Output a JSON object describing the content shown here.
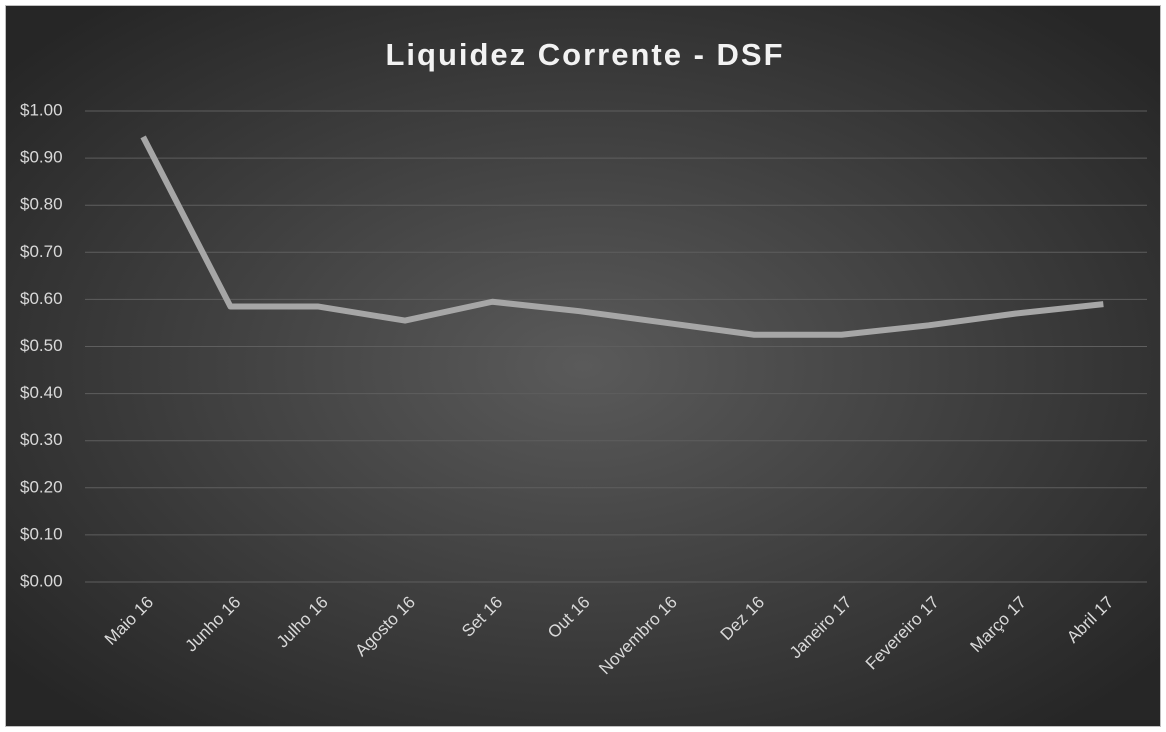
{
  "chart_data": {
    "type": "line",
    "title": "Liquidez Corrente -  DSF",
    "categories": [
      "Maio 16",
      "Junho 16",
      "Julho 16",
      "Agosto 16",
      "Set 16",
      "Out 16",
      "Novembro 16",
      "Dez 16",
      "Janeiro 17",
      "Fevereiro 17",
      "Março 17",
      "Abril 17"
    ],
    "values": [
      0.945,
      0.585,
      0.585,
      0.555,
      0.595,
      0.575,
      0.55,
      0.525,
      0.525,
      0.545,
      0.57,
      0.59
    ],
    "color": "#a6a6a6",
    "ylim": [
      0,
      1
    ],
    "yticks": [
      {
        "value": 0,
        "label": "$0.00"
      },
      {
        "value": 0.1,
        "label": "$0.10"
      },
      {
        "value": 0.2,
        "label": "$0.20"
      },
      {
        "value": 0.3,
        "label": "$0.30"
      },
      {
        "value": 0.4,
        "label": "$0.40"
      },
      {
        "value": 0.5,
        "label": "$0.50"
      },
      {
        "value": 0.6,
        "label": "$0.60"
      },
      {
        "value": 0.7,
        "label": "$0.70"
      },
      {
        "value": 0.8,
        "label": "$0.80"
      },
      {
        "value": 0.9,
        "label": "$0.90"
      },
      {
        "value": 1,
        "label": "$1.00"
      }
    ],
    "grid": true
  }
}
